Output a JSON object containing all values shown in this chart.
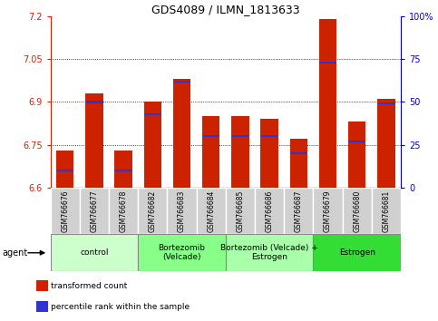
{
  "title": "GDS4089 / ILMN_1813633",
  "samples": [
    "GSM766676",
    "GSM766677",
    "GSM766678",
    "GSM766682",
    "GSM766683",
    "GSM766684",
    "GSM766685",
    "GSM766686",
    "GSM766687",
    "GSM766679",
    "GSM766680",
    "GSM766681"
  ],
  "transformed_counts": [
    6.73,
    6.93,
    6.73,
    6.9,
    6.98,
    6.85,
    6.85,
    6.84,
    6.77,
    7.19,
    6.83,
    6.91
  ],
  "percentile_ranks": [
    10,
    50,
    10,
    43,
    62,
    30,
    30,
    30,
    20,
    73,
    27,
    49
  ],
  "ylim_left": [
    6.6,
    7.2
  ],
  "ylim_right": [
    0,
    100
  ],
  "yticks_left": [
    6.6,
    6.75,
    6.9,
    7.05,
    7.2
  ],
  "yticks_right": [
    0,
    25,
    50,
    75,
    100
  ],
  "ytick_labels_left": [
    "6.6",
    "6.75",
    "6.9",
    "7.05",
    "7.2"
  ],
  "ytick_labels_right": [
    "0",
    "25",
    "50",
    "75",
    "100%"
  ],
  "gridlines_at": [
    6.75,
    6.9,
    7.05
  ],
  "bar_color": "#cc2200",
  "blue_color": "#3333cc",
  "agent_groups": [
    {
      "label": "control",
      "start": 0,
      "end": 3,
      "color": "#ccffcc"
    },
    {
      "label": "Bortezomib\n(Velcade)",
      "start": 3,
      "end": 6,
      "color": "#88ff88"
    },
    {
      "label": "Bortezomib (Velcade) +\nEstrogen",
      "start": 6,
      "end": 9,
      "color": "#aaffaa"
    },
    {
      "label": "Estrogen",
      "start": 9,
      "end": 12,
      "color": "#33dd33"
    }
  ],
  "agent_label": "agent",
  "legend_tc": "transformed count",
  "legend_pr": "percentile rank within the sample",
  "left_axis_color": "#cc2200",
  "right_axis_color": "#0000cc"
}
